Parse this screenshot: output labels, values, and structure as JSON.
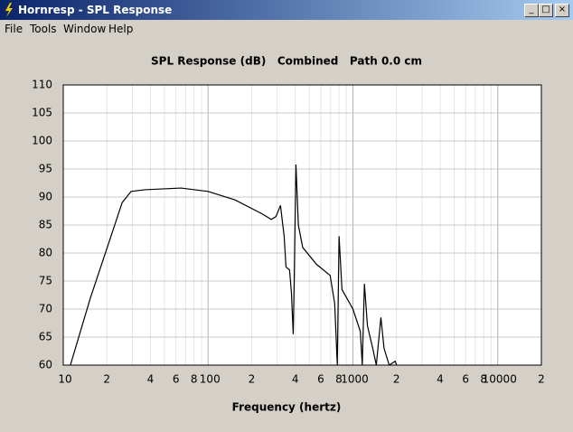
{
  "window": {
    "title": "Hornresp - SPL Response",
    "menu": [
      "File",
      "Tools",
      "Window",
      "Help"
    ]
  },
  "chart_data": {
    "type": "line",
    "title": "SPL Response (dB)   Combined   Path 0.0 cm",
    "xlabel": "Frequency (hertz)",
    "xscale": "log",
    "xlim": [
      10,
      20000
    ],
    "ylim": [
      60,
      110
    ],
    "grid": true,
    "yticks": [
      60,
      65,
      70,
      75,
      80,
      85,
      90,
      95,
      100,
      105,
      110
    ],
    "xticks": [
      10,
      {
        "value": 20,
        "label": "2"
      },
      {
        "value": 40,
        "label": "4"
      },
      {
        "value": 60,
        "label": "6"
      },
      {
        "value": 80,
        "label": "8"
      },
      100,
      {
        "value": 200,
        "label": "2"
      },
      {
        "value": 400,
        "label": "4"
      },
      {
        "value": 600,
        "label": "6"
      },
      {
        "value": 800,
        "label": "8"
      },
      1000,
      {
        "value": 2000,
        "label": "2"
      },
      {
        "value": 4000,
        "label": "4"
      },
      {
        "value": 6000,
        "label": "6"
      },
      {
        "value": 8000,
        "label": "8"
      },
      10000,
      {
        "value": 20000,
        "label": "2"
      }
    ],
    "xminor": [
      30,
      50,
      70,
      90,
      300,
      500,
      700,
      900,
      3000,
      5000,
      7000,
      9000
    ],
    "x": [
      11.2,
      15.4,
      22,
      25.5,
      29.4,
      36.6,
      65,
      100,
      153,
      236,
      273,
      294,
      316,
      335,
      345,
      365,
      376,
      387,
      393,
      404,
      420,
      450,
      560,
      696,
      748,
      780,
      802,
      840,
      1000,
      1125,
      1160,
      1200,
      1260,
      1370,
      1450,
      1560,
      1640,
      1780,
      1960,
      2000
    ],
    "values": [
      60,
      72,
      84,
      89,
      91,
      91.3,
      91.6,
      91,
      89.5,
      87,
      86,
      86.5,
      88.5,
      83,
      77.5,
      77,
      73,
      65.5,
      75,
      95.8,
      85,
      81,
      78,
      76,
      71,
      60,
      83,
      73.5,
      70,
      66,
      60,
      74.5,
      67,
      63,
      60,
      68.5,
      63,
      60,
      60.7,
      60
    ],
    "color": "#000000"
  }
}
